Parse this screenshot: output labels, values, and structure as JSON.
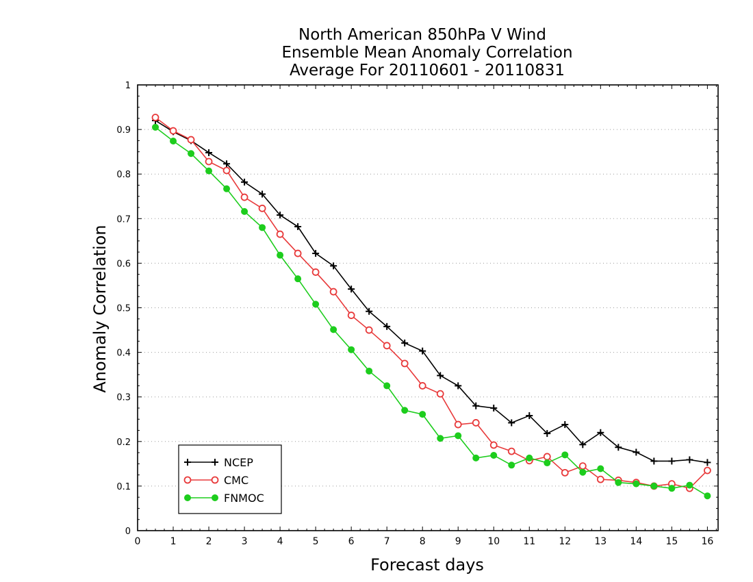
{
  "chart_data": {
    "type": "line",
    "title_lines": [
      "North American 850hPa V Wind",
      "Ensemble Mean Anomaly Correlation",
      "Average For 20110601 - 20110831"
    ],
    "xlabel": "Forecast days",
    "ylabel": "Anomaly Correlation",
    "xlim": [
      0,
      16.3
    ],
    "ylim": [
      0,
      1
    ],
    "x_ticks": [
      0,
      1,
      2,
      3,
      4,
      5,
      6,
      7,
      8,
      9,
      10,
      11,
      12,
      13,
      14,
      15,
      16
    ],
    "y_ticks": [
      0,
      0.1,
      0.2,
      0.3,
      0.4,
      0.5,
      0.6,
      0.7,
      0.8,
      0.9,
      1
    ],
    "y_tick_labels": [
      "0",
      "0.1",
      "0.2",
      "0.3",
      "0.4",
      "0.5",
      "0.6",
      "0.7",
      "0.8",
      "0.9",
      "1"
    ],
    "grid": "horizontal dotted",
    "legend_position": "bottom-left",
    "x": [
      0.5,
      1,
      1.5,
      2,
      2.5,
      3,
      3.5,
      4,
      4.5,
      5,
      5.5,
      6,
      6.5,
      7,
      7.5,
      8,
      8.5,
      9,
      9.5,
      10,
      10.5,
      11,
      11.5,
      12,
      12.5,
      13,
      13.5,
      14,
      14.5,
      15,
      15.5,
      16
    ],
    "series": [
      {
        "name": "NCEP",
        "color": "#000000",
        "marker": "plus",
        "values": [
          0.92,
          0.895,
          0.875,
          0.848,
          0.823,
          0.782,
          0.755,
          0.708,
          0.682,
          0.622,
          0.594,
          0.542,
          0.492,
          0.458,
          0.421,
          0.403,
          0.348,
          0.325,
          0.28,
          0.275,
          0.242,
          0.258,
          0.218,
          0.238,
          0.193,
          0.22,
          0.187,
          0.176,
          0.156,
          0.156,
          0.159,
          0.153
        ]
      },
      {
        "name": "CMC",
        "color": "#e8393a",
        "marker": "open-circle",
        "values": [
          0.927,
          0.897,
          0.877,
          0.828,
          0.808,
          0.748,
          0.723,
          0.665,
          0.622,
          0.58,
          0.536,
          0.483,
          0.45,
          0.415,
          0.375,
          0.325,
          0.307,
          0.238,
          0.242,
          0.192,
          0.178,
          0.157,
          0.166,
          0.13,
          0.145,
          0.115,
          0.113,
          0.108,
          0.1,
          0.105,
          0.095,
          0.135
        ]
      },
      {
        "name": "FNMOC",
        "color": "#1dcd1d",
        "marker": "filled-circle",
        "values": [
          0.905,
          0.874,
          0.846,
          0.807,
          0.767,
          0.716,
          0.68,
          0.618,
          0.565,
          0.508,
          0.451,
          0.406,
          0.358,
          0.325,
          0.27,
          0.261,
          0.207,
          0.213,
          0.163,
          0.169,
          0.147,
          0.163,
          0.152,
          0.17,
          0.131,
          0.139,
          0.108,
          0.105,
          0.1,
          0.095,
          0.102,
          0.078
        ]
      }
    ]
  }
}
